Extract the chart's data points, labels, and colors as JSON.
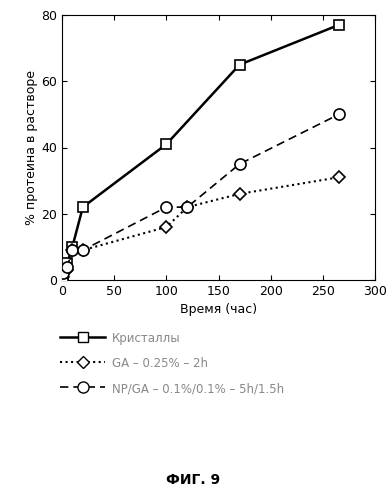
{
  "series": [
    {
      "label": "Кристаллы",
      "x": [
        0,
        1,
        5,
        10,
        20,
        100,
        170,
        265
      ],
      "y": [
        0,
        2,
        5,
        10,
        22,
        41,
        65,
        77
      ],
      "linestyle": "-",
      "marker": "s",
      "color": "black",
      "linewidth": 1.8,
      "markersize": 7,
      "markerfacecolor": "white"
    },
    {
      "label": "GA – 0.25% – 2h",
      "x": [
        0,
        1,
        5,
        10,
        20,
        100,
        120,
        170,
        265
      ],
      "y": [
        0,
        1,
        3,
        9,
        9,
        16,
        22,
        26,
        31
      ],
      "linestyle": "dotted",
      "marker": "D",
      "color": "black",
      "linewidth": 1.2,
      "markersize": 6,
      "markerfacecolor": "white"
    },
    {
      "label": "NP/GA – 0.1%/0.1% – 5h/1.5h",
      "x": [
        0,
        1,
        5,
        10,
        20,
        100,
        120,
        170,
        265
      ],
      "y": [
        0,
        2,
        4,
        9,
        9,
        22,
        22,
        35,
        50
      ],
      "linestyle": "dashed",
      "marker": "o",
      "color": "black",
      "linewidth": 1.2,
      "markersize": 8,
      "markerfacecolor": "white"
    }
  ],
  "xlabel": "Время (час)",
  "ylabel": "% протеина в растворе",
  "xlim": [
    0,
    300
  ],
  "ylim": [
    0,
    80
  ],
  "xticks": [
    0,
    50,
    100,
    150,
    200,
    250,
    300
  ],
  "yticks": [
    0,
    20,
    40,
    60,
    80
  ],
  "figcaption": "ФИГ. 9",
  "legend_text_color": "#888888",
  "background_color": "#ffffff"
}
